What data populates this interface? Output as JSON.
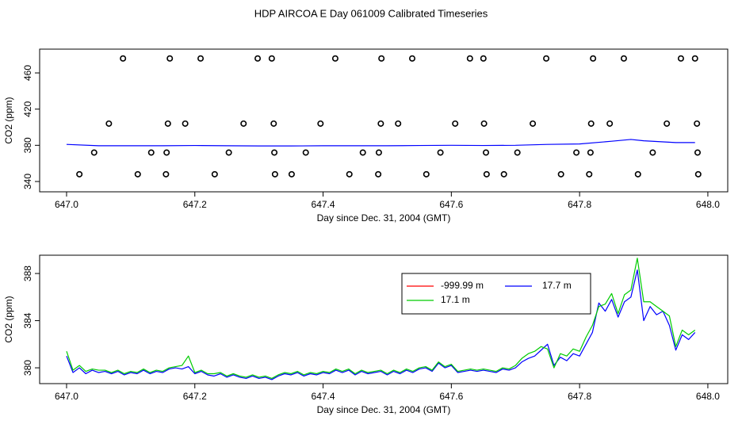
{
  "chart_data": [
    {
      "type": "scatter",
      "title": "HDP AIRCOA E  Day 061009  Calibrated Timeseries",
      "x_label": "Day since Dec. 31, 2004 (GMT)",
      "y_label": "CO2 (ppm)",
      "xlim": [
        646.958,
        648.031
      ],
      "ylim": [
        328.6,
        486.3
      ],
      "xticks": [
        {
          "value": 647,
          "label": "647.0"
        },
        647.2,
        647.4,
        647.6,
        647.8,
        {
          "value": 648,
          "label": "648.0"
        }
      ],
      "yticks": [
        340,
        380,
        420,
        460
      ],
      "series": [
        {
          "type": "scatter",
          "color": "#000000",
          "x": [
            647.088,
            647.161,
            647.209,
            647.298,
            647.32,
            647.419,
            647.491,
            647.539,
            647.629,
            647.65,
            647.748,
            647.821,
            647.869,
            647.958,
            647.98,
            647.066,
            647.158,
            647.185,
            647.276,
            647.323,
            647.396,
            647.49,
            647.517,
            647.606,
            647.651,
            647.727,
            647.818,
            647.847,
            647.936,
            647.983,
            647.043,
            647.132,
            647.156,
            647.253,
            647.324,
            647.373,
            647.462,
            647.487,
            647.583,
            647.654,
            647.703,
            647.795,
            647.817,
            647.914,
            647.984,
            647.02,
            647.111,
            647.155,
            647.231,
            647.325,
            647.351,
            647.441,
            647.486,
            647.561,
            647.655,
            647.682,
            647.771,
            647.815,
            647.891,
            647.985
          ],
          "values": [
            476,
            476,
            476,
            476,
            476,
            476,
            476,
            476,
            476,
            476,
            476,
            476,
            476,
            476,
            476,
            404,
            404,
            404,
            404,
            404,
            404,
            404,
            404,
            404,
            404,
            404,
            404,
            404,
            404,
            404,
            372,
            372,
            372,
            372,
            372,
            372,
            372,
            372,
            372,
            372,
            372,
            372,
            372,
            372,
            372,
            348,
            348,
            348,
            348,
            348,
            348,
            348,
            348,
            348,
            348,
            348,
            348,
            348,
            348,
            348
          ]
        },
        {
          "type": "line",
          "color": "#0000ff",
          "x": [
            647.0,
            647.05,
            647.1,
            647.15,
            647.2,
            647.25,
            647.3,
            647.35,
            647.4,
            647.45,
            647.5,
            647.55,
            647.6,
            647.65,
            647.7,
            647.75,
            647.8,
            647.85,
            647.88,
            647.9,
            647.95,
            647.98
          ],
          "values": [
            381,
            379.5,
            379.5,
            379.5,
            379.8,
            379.5,
            379.3,
            379.3,
            379.5,
            379.5,
            379.5,
            379.8,
            380,
            379.8,
            380,
            381,
            381.5,
            384.5,
            386.5,
            385,
            383,
            383
          ]
        }
      ]
    },
    {
      "type": "line",
      "x_label": "Day since Dec. 31, 2004 (GMT)",
      "y_label": "CO2 (ppm)",
      "xlim": [
        646.958,
        648.031
      ],
      "ylim": [
        378.66,
        389.55
      ],
      "xticks": [
        {
          "value": 647,
          "label": "647.0"
        },
        647.2,
        647.4,
        647.6,
        647.8,
        {
          "value": 648,
          "label": "648.0"
        }
      ],
      "yticks": [
        380,
        384,
        388
      ],
      "legend": "top-right",
      "x": [
        647.0,
        647.01,
        647.02,
        647.03,
        647.04,
        647.05,
        647.06,
        647.07,
        647.08,
        647.09,
        647.1,
        647.11,
        647.12,
        647.13,
        647.14,
        647.15,
        647.16,
        647.17,
        647.18,
        647.19,
        647.2,
        647.21,
        647.22,
        647.23,
        647.24,
        647.25,
        647.26,
        647.27,
        647.28,
        647.29,
        647.3,
        647.31,
        647.32,
        647.33,
        647.34,
        647.35,
        647.36,
        647.37,
        647.38,
        647.39,
        647.4,
        647.41,
        647.42,
        647.43,
        647.44,
        647.45,
        647.46,
        647.47,
        647.48,
        647.49,
        647.5,
        647.51,
        647.52,
        647.53,
        647.54,
        647.55,
        647.56,
        647.57,
        647.58,
        647.59,
        647.6,
        647.61,
        647.62,
        647.63,
        647.64,
        647.65,
        647.66,
        647.67,
        647.68,
        647.69,
        647.7,
        647.71,
        647.72,
        647.73,
        647.74,
        647.75,
        647.76,
        647.77,
        647.78,
        647.79,
        647.8,
        647.81,
        647.82,
        647.83,
        647.84,
        647.85,
        647.86,
        647.87,
        647.88,
        647.89,
        647.9,
        647.91,
        647.92,
        647.93,
        647.94,
        647.95,
        647.96,
        647.97,
        647.98
      ],
      "series": [
        {
          "name": "-999.99 m",
          "color": "#ff0000",
          "values": [
            null,
            null,
            null,
            null,
            null,
            null,
            null,
            null,
            null,
            null,
            null,
            null,
            null,
            null,
            null,
            null,
            null,
            null,
            null,
            null,
            null,
            null,
            null,
            null,
            null,
            null,
            null,
            null,
            null,
            null,
            null,
            null,
            null,
            null,
            null,
            null,
            null,
            null,
            null,
            null,
            null,
            null,
            null,
            null,
            null,
            null,
            null,
            null,
            null,
            null,
            null,
            null,
            null,
            null,
            null,
            null,
            null,
            null,
            null,
            null,
            null,
            null,
            null,
            null,
            null,
            null,
            null,
            null,
            null,
            null,
            null,
            null,
            null,
            null,
            null,
            null,
            null,
            null,
            null,
            null,
            null,
            null,
            null,
            null,
            null,
            null,
            null,
            null,
            null,
            null,
            null,
            null,
            null,
            null,
            null,
            null,
            null,
            null,
            null
          ]
        },
        {
          "name": "17.7 m",
          "color": "#0000ff",
          "values": [
            381.0,
            379.6,
            380.0,
            379.5,
            379.8,
            379.6,
            379.7,
            379.5,
            379.7,
            379.4,
            379.6,
            379.5,
            379.8,
            379.5,
            379.7,
            379.6,
            379.9,
            380.0,
            379.9,
            380.1,
            379.5,
            379.7,
            379.4,
            379.3,
            379.5,
            379.2,
            379.4,
            379.2,
            379.1,
            379.3,
            379.1,
            379.2,
            379.0,
            379.3,
            379.5,
            379.4,
            379.6,
            379.3,
            379.5,
            379.4,
            379.6,
            379.5,
            379.8,
            379.6,
            379.8,
            379.4,
            379.7,
            379.5,
            379.6,
            379.7,
            379.4,
            379.7,
            379.5,
            379.8,
            379.6,
            379.9,
            380.0,
            379.7,
            380.4,
            380.0,
            380.2,
            379.6,
            379.7,
            379.8,
            379.7,
            379.8,
            379.7,
            379.6,
            379.9,
            379.8,
            380.0,
            380.5,
            380.8,
            381.0,
            381.5,
            382.0,
            380.2,
            380.9,
            380.6,
            381.2,
            381.0,
            382.0,
            383.0,
            385.5,
            384.8,
            385.8,
            384.3,
            385.6,
            386.0,
            388.3,
            384.0,
            385.2,
            384.5,
            384.8,
            383.6,
            381.5,
            382.8,
            382.4,
            383.0
          ]
        },
        {
          "name": "17.1 m",
          "color": "#00cc00",
          "values": [
            381.4,
            379.8,
            380.2,
            379.7,
            379.9,
            379.8,
            379.8,
            379.6,
            379.8,
            379.5,
            379.7,
            379.6,
            379.9,
            379.6,
            379.8,
            379.7,
            380.0,
            380.1,
            380.2,
            381.0,
            379.6,
            379.8,
            379.5,
            379.5,
            379.6,
            379.3,
            379.5,
            379.3,
            379.2,
            379.4,
            379.2,
            379.3,
            379.1,
            379.4,
            379.6,
            379.5,
            379.7,
            379.4,
            379.6,
            379.5,
            379.7,
            379.6,
            379.9,
            379.7,
            379.9,
            379.5,
            379.8,
            379.6,
            379.7,
            379.8,
            379.5,
            379.8,
            379.6,
            379.9,
            379.7,
            380.0,
            380.1,
            379.8,
            380.5,
            380.1,
            380.3,
            379.7,
            379.8,
            379.9,
            379.8,
            379.9,
            379.8,
            379.7,
            380.0,
            379.9,
            380.2,
            380.8,
            381.2,
            381.4,
            381.8,
            381.6,
            380.0,
            381.2,
            381.0,
            381.6,
            381.4,
            382.6,
            383.6,
            385.2,
            385.4,
            386.3,
            384.6,
            386.2,
            386.6,
            389.3,
            385.6,
            385.6,
            385.2,
            384.8,
            384.4,
            381.8,
            383.2,
            382.8,
            383.2
          ]
        }
      ]
    }
  ]
}
